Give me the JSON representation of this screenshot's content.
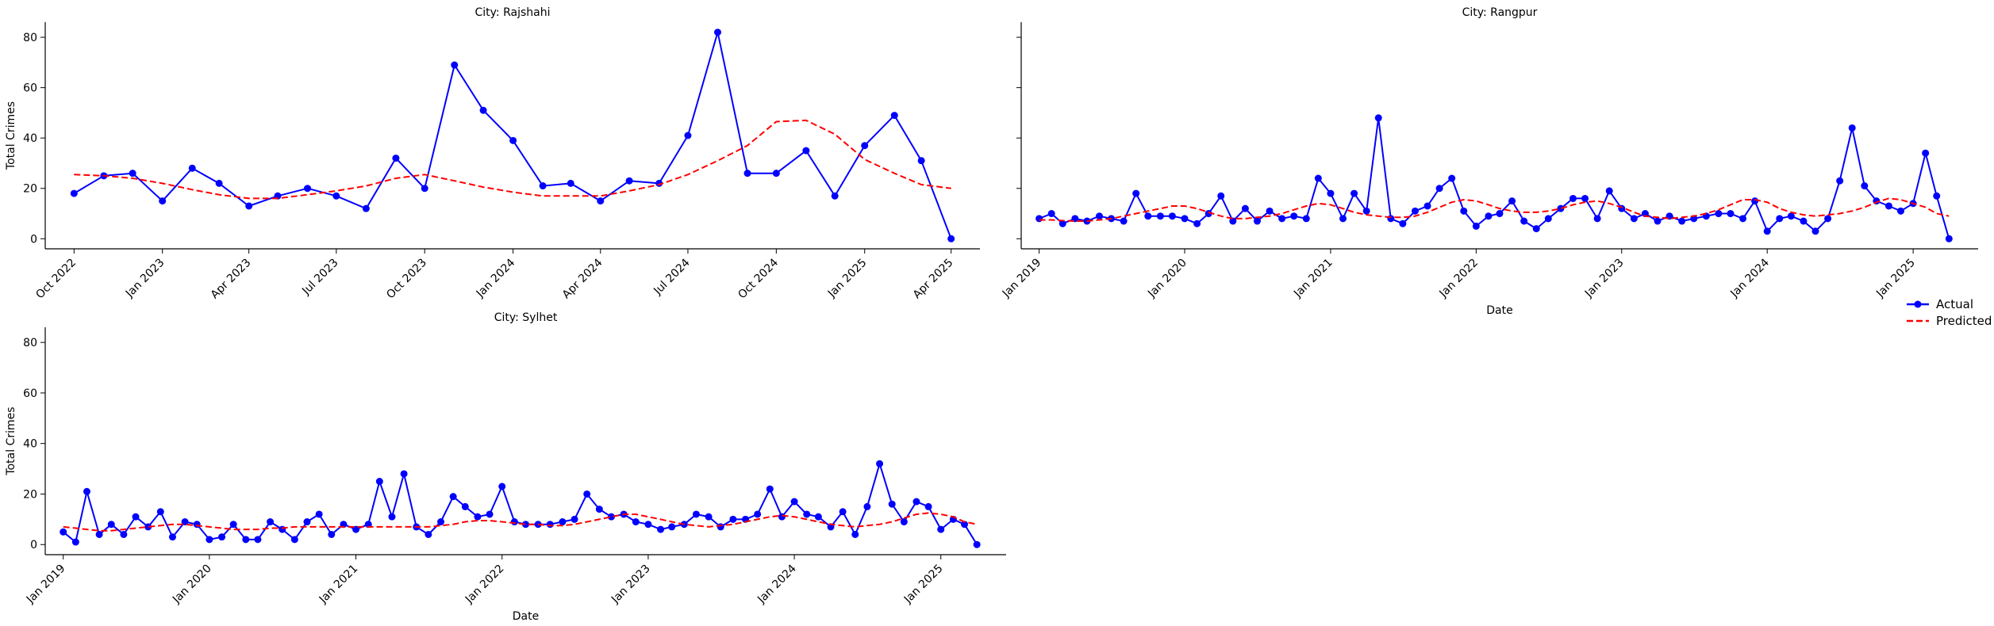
{
  "chart_data": [
    {
      "type": "line",
      "title": "City: Rajshahi",
      "xlabel": "",
      "ylabel": "Total Crimes",
      "ylim": [
        -4,
        86
      ],
      "yticks": [
        0,
        20,
        40,
        60,
        80
      ],
      "xlim": [
        "2022-09-01",
        "2025-05-01"
      ],
      "xtick_labels": [
        "Oct 2022",
        "Jan 2023",
        "Apr 2023",
        "Jul 2023",
        "Oct 2023",
        "Jan 2024",
        "Apr 2024",
        "Jul 2024",
        "Oct 2024",
        "Jan 2025",
        "Apr 2025"
      ],
      "xtick_dates": [
        "2022-10-01",
        "2023-01-01",
        "2023-04-01",
        "2023-07-01",
        "2023-10-01",
        "2024-01-01",
        "2024-04-01",
        "2024-07-01",
        "2024-10-01",
        "2025-01-01",
        "2025-04-01"
      ],
      "x": [
        "2022-10-01",
        "2022-11-01",
        "2022-12-01",
        "2023-01-01",
        "2023-02-01",
        "2023-03-01",
        "2023-04-01",
        "2023-05-01",
        "2023-06-01",
        "2023-07-01",
        "2023-08-01",
        "2023-09-01",
        "2023-10-01",
        "2023-11-01",
        "2023-12-01",
        "2024-01-01",
        "2024-02-01",
        "2024-03-01",
        "2024-04-01",
        "2024-05-01",
        "2024-06-01",
        "2024-07-01",
        "2024-08-01",
        "2024-09-01",
        "2024-10-01",
        "2024-11-01",
        "2024-12-01",
        "2025-01-01",
        "2025-02-01",
        "2025-03-01",
        "2025-04-01"
      ],
      "series": [
        {
          "name": "Actual",
          "color": "#0000ff",
          "style": "solid-markers",
          "values": [
            18,
            25,
            26,
            15,
            28,
            22,
            13,
            17,
            20,
            17,
            12,
            32,
            20,
            69,
            51,
            39,
            21,
            22,
            15,
            23,
            22,
            41,
            82,
            26,
            26,
            35,
            17,
            37,
            49,
            31,
            0
          ]
        },
        {
          "name": "Predicted",
          "color": "#ff0000",
          "style": "dashed",
          "values": [
            25.5,
            25,
            24,
            22,
            19.5,
            17.5,
            16,
            16,
            17.5,
            19,
            21,
            24,
            25.5,
            23,
            20.5,
            18.5,
            17,
            17,
            17,
            19,
            21.5,
            25.5,
            31,
            37,
            46.5,
            47,
            41.5,
            31.5,
            26,
            21.5,
            20
          ]
        }
      ]
    },
    {
      "type": "line",
      "title": "City: Rangpur",
      "xlabel": "Date",
      "ylabel": "",
      "ylim": [
        -4,
        86
      ],
      "yticks": [
        0,
        20,
        40,
        60,
        80
      ],
      "xlim": [
        "2018-11-17",
        "2025-06-13"
      ],
      "xtick_labels": [
        "Jan 2019",
        "Jan 2020",
        "Jan 2021",
        "Jan 2022",
        "Jan 2023",
        "Jan 2024",
        "Jan 2025"
      ],
      "xtick_dates": [
        "2019-01-01",
        "2020-01-01",
        "2021-01-01",
        "2022-01-01",
        "2023-01-01",
        "2024-01-01",
        "2025-01-01"
      ],
      "x_start": "2019-01",
      "series": [
        {
          "name": "Actual",
          "color": "#0000ff",
          "style": "solid-markers",
          "values": [
            8,
            10,
            6,
            8,
            7,
            9,
            8,
            7,
            18,
            9,
            9,
            9,
            8,
            6,
            10,
            17,
            7,
            12,
            7,
            11,
            8,
            9,
            8,
            24,
            18,
            8,
            18,
            11,
            48,
            8,
            6,
            11,
            13,
            20,
            24,
            11,
            5,
            9,
            10,
            15,
            7,
            4,
            8,
            12,
            16,
            16,
            8,
            19,
            12,
            8,
            10,
            7,
            9,
            7,
            8,
            9,
            10,
            10,
            8,
            15,
            3,
            8,
            9,
            7,
            3,
            8,
            23,
            44,
            21,
            15,
            13,
            11,
            14,
            34,
            17,
            0
          ]
        },
        {
          "name": "Predicted",
          "color": "#ff0000",
          "style": "dashed",
          "values": [
            7.5,
            7.5,
            7.2,
            7,
            7,
            7.5,
            8,
            9,
            10,
            11,
            12,
            13,
            13,
            12,
            10.5,
            9,
            8,
            8,
            8.5,
            9,
            10,
            11.5,
            13,
            14,
            13.5,
            12,
            10.5,
            9.5,
            9,
            8.5,
            8.5,
            9,
            10.5,
            12.5,
            14.5,
            15.5,
            15,
            13.5,
            12,
            11,
            10.5,
            10.5,
            11,
            12,
            13.5,
            14.5,
            15,
            14,
            12.5,
            10.5,
            9,
            8.5,
            8,
            8.5,
            9,
            10,
            11.5,
            13.5,
            15.5,
            15.5,
            14.5,
            12,
            10.5,
            9.5,
            9,
            9.5,
            10,
            11,
            12.5,
            14.5,
            16,
            15.5,
            14,
            12.5,
            10,
            9
          ]
        }
      ]
    },
    {
      "type": "line",
      "title": "City: Sylhet",
      "xlabel": "Date",
      "ylabel": "Total Crimes",
      "ylim": [
        -4,
        86
      ],
      "yticks": [
        0,
        20,
        40,
        60,
        80
      ],
      "xlim": [
        "2018-11-17",
        "2025-06-13"
      ],
      "xtick_labels": [
        "Jan 2019",
        "Jan 2020",
        "Jan 2021",
        "Jan 2022",
        "Jan 2023",
        "Jan 2024",
        "Jan 2025"
      ],
      "xtick_dates": [
        "2019-01-01",
        "2020-01-01",
        "2021-01-01",
        "2022-01-01",
        "2023-01-01",
        "2024-01-01",
        "2025-01-01"
      ],
      "x_start": "2019-01",
      "series": [
        {
          "name": "Actual",
          "color": "#0000ff",
          "style": "solid-markers",
          "values": [
            5,
            1,
            21,
            4,
            8,
            4,
            11,
            7,
            13,
            3,
            9,
            8,
            2,
            3,
            8,
            2,
            2,
            9,
            6,
            2,
            9,
            12,
            4,
            8,
            6,
            8,
            25,
            11,
            28,
            7,
            4,
            9,
            19,
            15,
            11,
            12,
            23,
            9,
            8,
            8,
            8,
            9,
            10,
            20,
            14,
            11,
            12,
            9,
            8,
            6,
            7,
            8,
            12,
            11,
            7,
            10,
            10,
            12,
            22,
            11,
            17,
            12,
            11,
            7,
            13,
            4,
            15,
            32,
            16,
            9,
            17,
            15,
            6,
            10,
            8,
            0
          ]
        },
        {
          "name": "Predicted",
          "color": "#ff0000",
          "style": "dashed",
          "values": [
            7,
            6.5,
            6,
            5.5,
            5.5,
            6,
            6.5,
            7,
            7.5,
            8,
            8,
            7.5,
            7,
            6.5,
            6,
            6,
            6,
            6.5,
            6.5,
            7,
            7,
            7,
            7,
            7,
            7,
            7,
            7,
            7,
            7,
            7,
            7,
            7.5,
            8,
            9,
            9.5,
            9.5,
            9,
            8.5,
            8,
            8,
            7.5,
            7.5,
            8,
            9,
            10,
            11,
            12,
            12,
            11,
            10,
            9,
            8,
            7.5,
            7,
            7.5,
            8,
            9,
            10,
            11,
            11.5,
            11,
            10,
            9,
            8,
            7.5,
            7,
            7.5,
            8,
            9,
            10.5,
            12,
            12.5,
            12,
            11,
            9,
            8
          ]
        }
      ]
    }
  ],
  "legend": {
    "placement": "right, beside the Rangpur panel",
    "entries": [
      {
        "label": "Actual",
        "color": "#0000ff"
      },
      {
        "label": "Predicted",
        "color": "#ff0000"
      }
    ]
  }
}
